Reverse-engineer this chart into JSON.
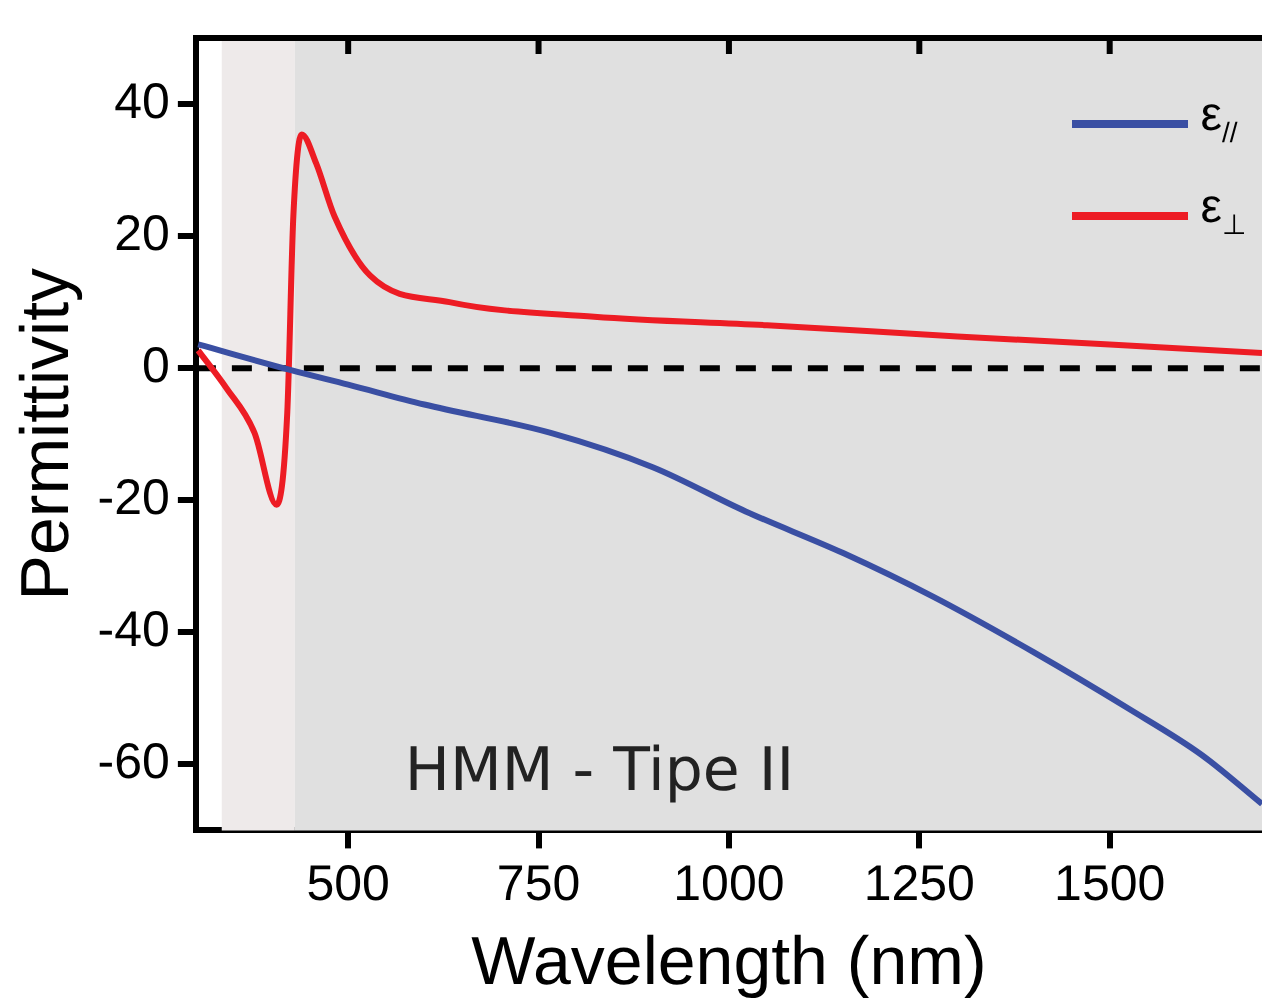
{
  "chart_data": {
    "type": "line",
    "xlabel": "Wavelength (nm)",
    "ylabel": "Permittivity",
    "annotations": [
      "HMM - Tipe II"
    ],
    "xlim": [
      300,
      1700
    ],
    "xticks": [
      500,
      750,
      1000,
      1250,
      1500
    ],
    "ylim": [
      -70,
      50
    ],
    "yticks": [
      -60,
      -40,
      -20,
      0,
      20,
      40
    ],
    "series": [
      {
        "name": "ε$_{//}$",
        "color": "#3a4fa3",
        "x": [
          303,
          425,
          500,
          600,
          766,
          900,
          1022,
          1150,
          1268,
          1400,
          1524,
          1620,
          1700
        ],
        "values": [
          3.6,
          -0.3,
          -2.5,
          -5.5,
          -9.8,
          -15,
          -21.7,
          -28,
          -34.6,
          -43,
          -51.5,
          -58.5,
          -66
        ]
      },
      {
        "name": "ε$_{⊥}$",
        "color": "#ed1c24",
        "x": [
          303,
          340,
          377,
          406,
          420,
          428,
          439,
          458,
          482,
          529,
          633,
          823,
          1050,
          1300,
          1500,
          1700
        ],
        "values": [
          2.7,
          -3,
          -9.8,
          -20.7,
          -6.8,
          23,
          35.4,
          31,
          23,
          14,
          10,
          7.8,
          6.5,
          4.8,
          3.6,
          2.3
        ]
      }
    ],
    "ref_lines": [
      {
        "axis": "y",
        "value": 0,
        "color": "#000000",
        "line_style": "dashed"
      }
    ],
    "bands": [
      {
        "axis": "x",
        "from": 334,
        "to": 430,
        "color": "#eeeaea"
      },
      {
        "axis": "x",
        "from": 430,
        "to": 1700,
        "color": "#e0e0e0"
      }
    ],
    "legend": "top right",
    "line_style": "solid",
    "marker": "none",
    "grid": false
  }
}
